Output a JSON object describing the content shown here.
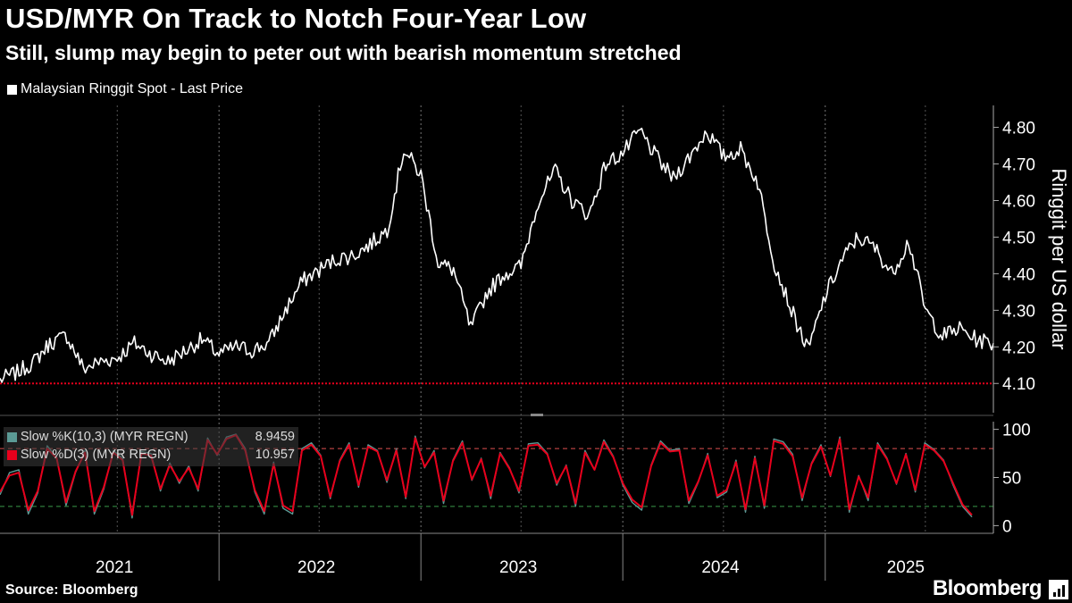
{
  "header": {
    "title": "USD/MYR On Track to Notch Four-Year Low",
    "subtitle": "Still, slump may begin to peter out with bearish momentum stretched"
  },
  "footer": {
    "source": "Source: Bloomberg",
    "brand": "Bloomberg"
  },
  "colors": {
    "background": "#000000",
    "price_line": "#ffffff",
    "support_line": "#e8001c",
    "slow_k": "#5b9a95",
    "slow_d": "#e8001c",
    "level_80": "#e05050",
    "level_20": "#3a9a4a",
    "grid": "#777777"
  },
  "chart_data": [
    {
      "type": "line",
      "series": [
        {
          "name": "Malaysian Ringgit Spot - Last Price",
          "x": [
            "2020-12-01",
            "2021-01-01",
            "2021-02-01",
            "2021-03-01",
            "2021-04-01",
            "2021-05-01",
            "2021-06-01",
            "2021-07-01",
            "2021-08-01",
            "2021-09-01",
            "2021-10-01",
            "2021-11-01",
            "2021-12-01",
            "2022-01-01",
            "2022-02-01",
            "2022-03-01",
            "2022-04-01",
            "2022-05-01",
            "2022-06-01",
            "2022-07-01",
            "2022-08-01",
            "2022-09-01",
            "2022-10-01",
            "2022-11-01",
            "2022-12-01",
            "2023-01-01",
            "2023-02-01",
            "2023-03-01",
            "2023-04-01",
            "2023-05-01",
            "2023-06-01",
            "2023-07-01",
            "2023-08-01",
            "2023-09-01",
            "2023-10-01",
            "2023-11-01",
            "2023-12-01",
            "2024-01-01",
            "2024-02-01",
            "2024-03-01",
            "2024-04-01",
            "2024-05-01",
            "2024-06-01",
            "2024-07-01",
            "2024-08-01",
            "2024-09-01",
            "2024-10-01",
            "2024-11-01",
            "2024-12-01",
            "2025-01-01",
            "2025-02-01",
            "2025-03-01",
            "2025-04-01",
            "2025-05-01",
            "2025-06-01",
            "2025-07-01",
            "2025-08-01",
            "2025-09-01",
            "2025-10-01",
            "2025-11-01"
          ],
          "values": [
            4.11,
            4.13,
            4.16,
            4.21,
            4.23,
            4.14,
            4.16,
            4.17,
            4.21,
            4.18,
            4.16,
            4.19,
            4.22,
            4.18,
            4.2,
            4.19,
            4.21,
            4.3,
            4.38,
            4.41,
            4.44,
            4.45,
            4.48,
            4.52,
            4.74,
            4.67,
            4.43,
            4.41,
            4.25,
            4.35,
            4.4,
            4.42,
            4.6,
            4.68,
            4.6,
            4.56,
            4.7,
            4.73,
            4.79,
            4.72,
            4.66,
            4.72,
            4.79,
            4.72,
            4.74,
            4.65,
            4.43,
            4.3,
            4.19,
            4.34,
            4.44,
            4.5,
            4.47,
            4.4,
            4.49,
            4.3,
            4.23,
            4.25,
            4.22,
            4.21
          ]
        }
      ],
      "support_level": 4.1,
      "ylabel": "Ringgit per US dollar",
      "y_ticks": [
        4.1,
        4.2,
        4.3,
        4.4,
        4.5,
        4.6,
        4.7,
        4.8
      ],
      "y_tick_labels": [
        "4.10",
        "4.20",
        "4.30",
        "4.40",
        "4.50",
        "4.60",
        "4.70",
        "4.80"
      ],
      "ylim": [
        4.02,
        4.86
      ],
      "legend": "top-left",
      "grid": "vertical-dashed"
    },
    {
      "type": "line",
      "series": [
        {
          "name": "Slow %K(10,3) (MYR REGN)",
          "last": "8.9459",
          "values": [
            32,
            55,
            58,
            12,
            34,
            83,
            71,
            21,
            55,
            78,
            12,
            38,
            78,
            70,
            8,
            77,
            75,
            36,
            65,
            44,
            62,
            36,
            91,
            73,
            92,
            95,
            80,
            35,
            12,
            66,
            18,
            12,
            80,
            86,
            73,
            28,
            68,
            86,
            40,
            84,
            78,
            45,
            80,
            28,
            93,
            60,
            78,
            23,
            68,
            88,
            47,
            70,
            28,
            76,
            60,
            34,
            85,
            86,
            75,
            42,
            63,
            20,
            78,
            58,
            89,
            72,
            42,
            24,
            16,
            63,
            88,
            78,
            80,
            23,
            45,
            75,
            29,
            35,
            68,
            14,
            72,
            18,
            90,
            87,
            74,
            26,
            65,
            84,
            51,
            92,
            14,
            52,
            26,
            86,
            70,
            43,
            75,
            35,
            86,
            79,
            68,
            42,
            20,
            9
          ]
        },
        {
          "name": "Slow %D(3) (MYR REGN)",
          "last": "10.957",
          "values": [
            35,
            52,
            55,
            16,
            36,
            80,
            70,
            24,
            56,
            76,
            15,
            40,
            76,
            68,
            11,
            75,
            73,
            38,
            63,
            46,
            60,
            38,
            89,
            74,
            90,
            94,
            78,
            37,
            15,
            64,
            21,
            15,
            78,
            84,
            72,
            30,
            67,
            84,
            42,
            82,
            77,
            47,
            78,
            30,
            91,
            61,
            76,
            26,
            67,
            86,
            48,
            69,
            31,
            75,
            59,
            36,
            83,
            84,
            74,
            44,
            62,
            23,
            76,
            58,
            87,
            71,
            44,
            27,
            19,
            62,
            86,
            77,
            78,
            26,
            46,
            73,
            31,
            37,
            66,
            17,
            70,
            21,
            88,
            85,
            72,
            29,
            64,
            82,
            52,
            90,
            17,
            51,
            29,
            84,
            69,
            44,
            74,
            37,
            84,
            78,
            67,
            44,
            22,
            11
          ]
        }
      ],
      "reference_lines": [
        80,
        20
      ],
      "y_ticks": [
        0,
        50,
        100
      ],
      "y_tick_labels": [
        "0",
        "50",
        "100"
      ],
      "ylim": [
        -8,
        108
      ]
    }
  ],
  "x_axis": {
    "years": [
      "2021",
      "2022",
      "2023",
      "2024",
      "2025"
    ]
  }
}
